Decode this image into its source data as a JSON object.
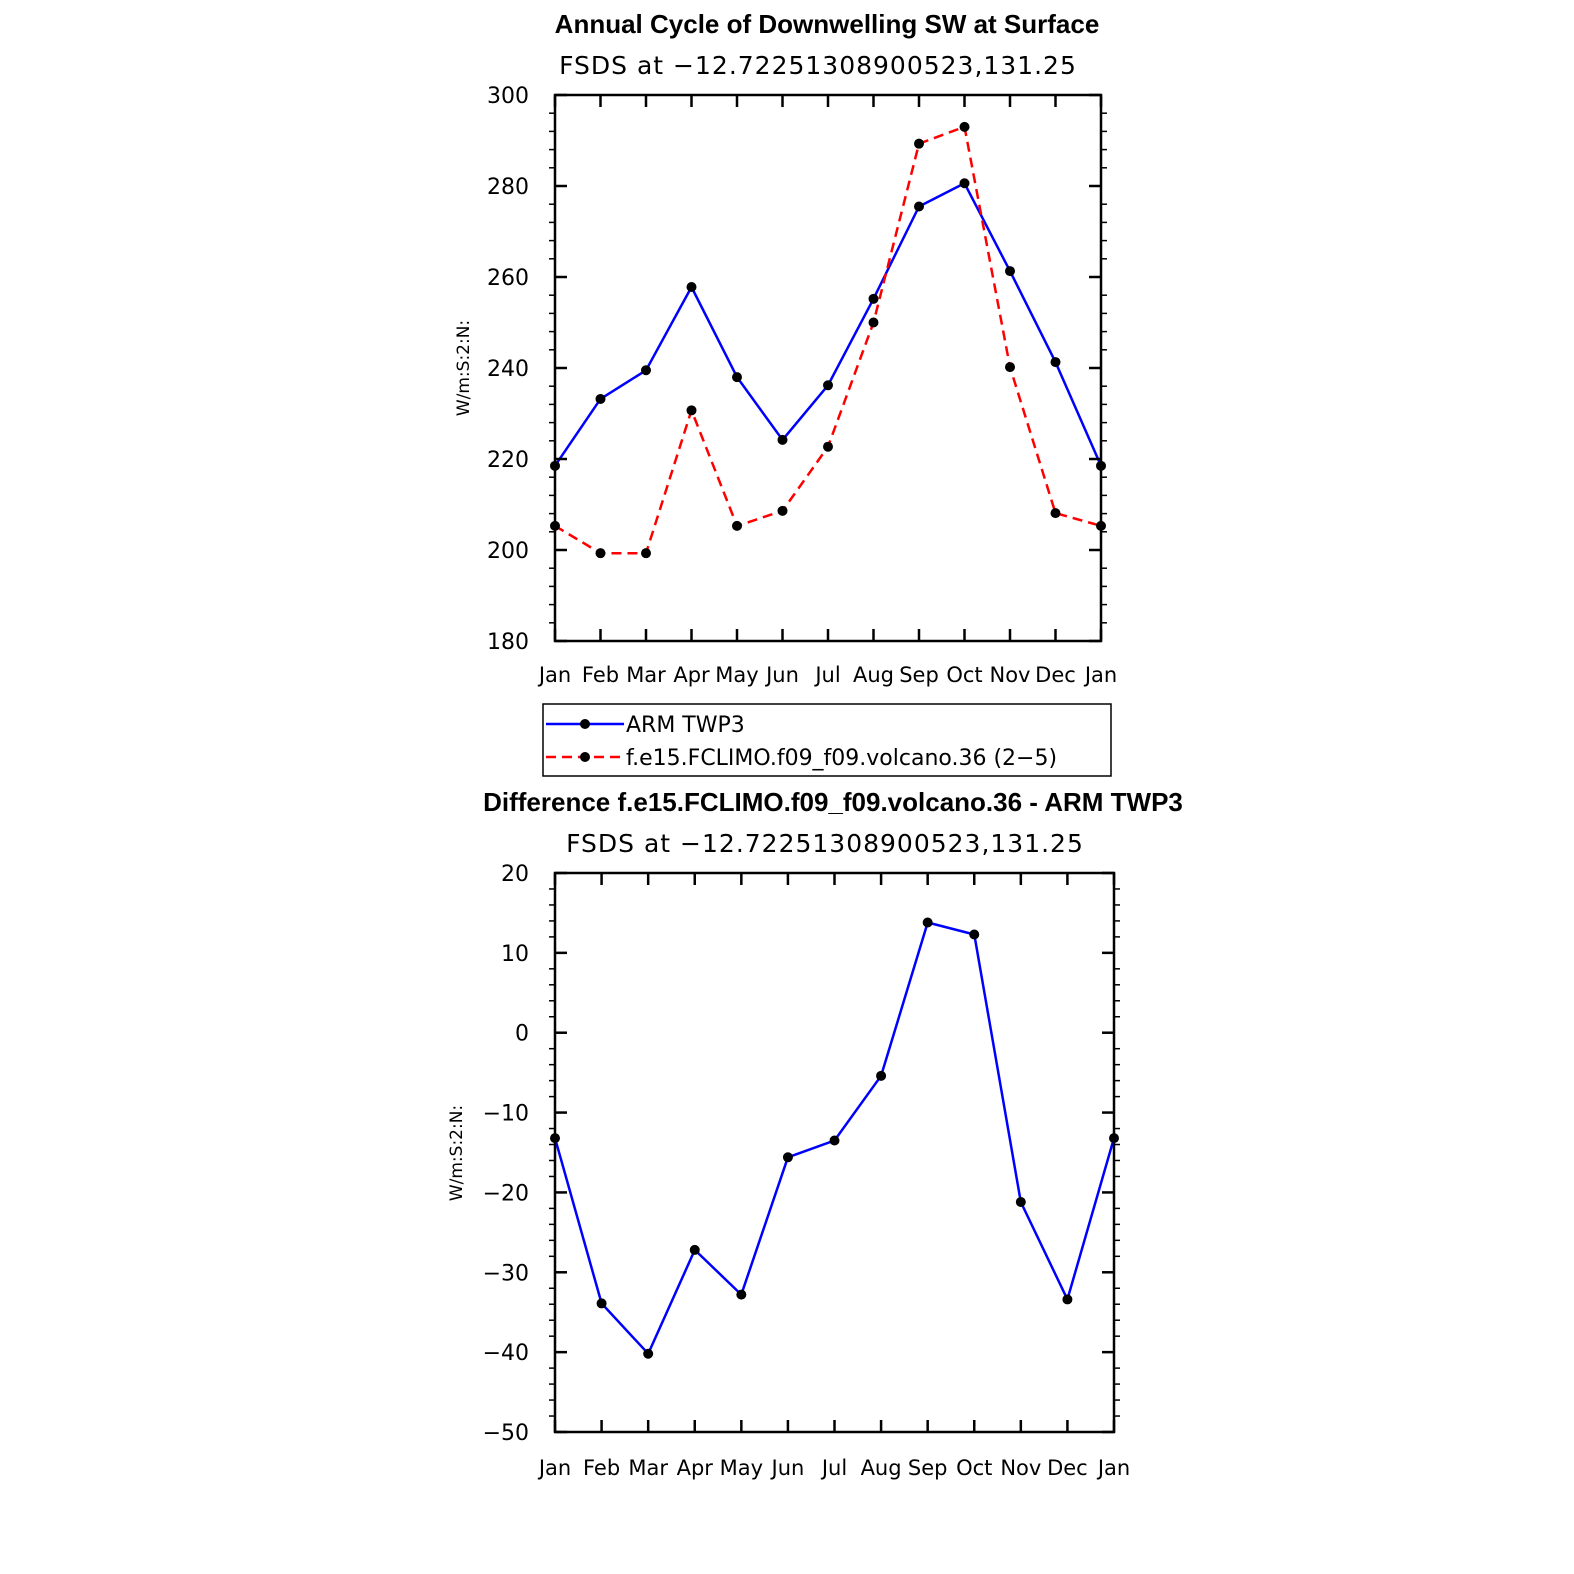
{
  "chart_data": [
    {
      "type": "line",
      "title": "Annual Cycle of Downwelling SW at Surface",
      "subtitle": "FSDS at −12.72251308900523,131.25",
      "ylabel": "W/m:S:2:N:",
      "xlabel": "",
      "categories": [
        "Jan",
        "Feb",
        "Mar",
        "Apr",
        "May",
        "Jun",
        "Jul",
        "Aug",
        "Sep",
        "Oct",
        "Nov",
        "Dec",
        "Jan"
      ],
      "ylim": [
        180,
        300
      ],
      "yticks": [
        "180",
        "200",
        "220",
        "240",
        "260",
        "280",
        "300"
      ],
      "series": [
        {
          "name": "ARM TWP3",
          "color": "#0000ff",
          "dash": "solid",
          "values": [
            218.5,
            233.2,
            239.5,
            257.8,
            238.0,
            224.2,
            236.2,
            255.2,
            275.5,
            280.6,
            261.3,
            241.3,
            218.5
          ]
        },
        {
          "name": "f.e15.FCLIMO.f09_f09.volcano.36 (2−5)",
          "color": "#ff0000",
          "dash": "dashed",
          "values": [
            205.3,
            199.3,
            199.3,
            230.7,
            205.3,
            208.6,
            222.7,
            250.0,
            289.3,
            293.0,
            240.2,
            208.1,
            205.3
          ]
        }
      ],
      "legend": "below"
    },
    {
      "type": "line",
      "title": "Difference f.e15.FCLIMO.f09_f09.volcano.36 - ARM TWP3",
      "subtitle": "FSDS at −12.72251308900523,131.25",
      "ylabel": "W/m:S:2:N:",
      "xlabel": "",
      "categories": [
        "Jan",
        "Feb",
        "Mar",
        "Apr",
        "May",
        "Jun",
        "Jul",
        "Aug",
        "Sep",
        "Oct",
        "Nov",
        "Dec",
        "Jan"
      ],
      "ylim": [
        -50,
        20
      ],
      "yticks": [
        "−50",
        "−40",
        "−30",
        "−20",
        "−10",
        "0",
        "10",
        "20"
      ],
      "series": [
        {
          "name": "Difference",
          "color": "#0000ff",
          "dash": "solid",
          "values": [
            -13.2,
            -33.9,
            -40.2,
            -27.2,
            -32.8,
            -15.6,
            -13.5,
            -5.4,
            13.8,
            12.3,
            -21.2,
            -33.4,
            -13.2
          ]
        }
      ]
    }
  ]
}
